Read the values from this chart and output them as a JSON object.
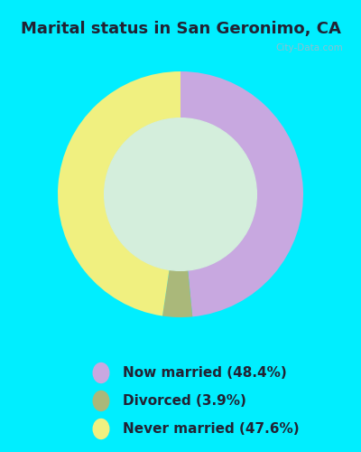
{
  "title": "Marital status in San Geronimo, CA",
  "title_color": "#222233",
  "background_color": "#00eeff",
  "chart_panel_color": "#d4eedc",
  "slices": [
    48.4,
    3.9,
    47.6
  ],
  "labels": [
    "Now married (48.4%)",
    "Divorced (3.9%)",
    "Never married (47.6%)"
  ],
  "colors": [
    "#c8a8e0",
    "#aab87a",
    "#f0f080"
  ],
  "donut_width": 0.38,
  "legend_marker_colors": [
    "#c8a8e0",
    "#aab87a",
    "#f0f080"
  ],
  "watermark": "City-Data.com",
  "start_angle": 90,
  "title_fontsize": 13,
  "legend_fontsize": 11
}
